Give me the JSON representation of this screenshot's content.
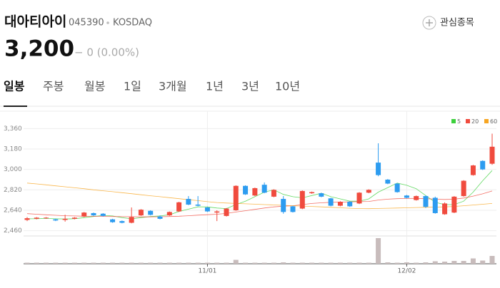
{
  "header": {
    "name": "대아티아이",
    "code": "045390",
    "market": "KOSDAQ",
    "watch_button": "관심종목",
    "price": "3,200",
    "change": "− 0 (0.00%)"
  },
  "tabs": [
    "일봉",
    "주봉",
    "월봉",
    "1일",
    "3개월",
    "1년",
    "3년",
    "10년"
  ],
  "chart_data": {
    "type": "candlestick",
    "categories": [
      null,
      null,
      null,
      null,
      null,
      null,
      null,
      null,
      null,
      null,
      null,
      null,
      null,
      null,
      null,
      null,
      null,
      null,
      null,
      "11/01",
      null,
      null,
      null,
      null,
      null,
      null,
      null,
      null,
      null,
      null,
      null,
      null,
      null,
      null,
      null,
      null,
      null,
      null,
      null,
      null,
      "12/02",
      null,
      null,
      null,
      null,
      null,
      null,
      null,
      null,
      null
    ],
    "open": [
      2555,
      2565,
      2570,
      2560,
      2555,
      2565,
      2585,
      2615,
      2610,
      2560,
      2545,
      2530,
      2595,
      2635,
      2585,
      2595,
      2630,
      2740,
      2690,
      2665,
      2620,
      2590,
      2640,
      2855,
      2770,
      2865,
      2760,
      2740,
      2675,
      2655,
      2790,
      2790,
      2745,
      2680,
      2715,
      2700,
      2795,
      3060,
      2910,
      2875,
      2770,
      2730,
      2765,
      2750,
      2605,
      2620,
      2765,
      2950,
      3075,
      3050
    ],
    "high": [
      2580,
      2580,
      2580,
      2565,
      2600,
      2580,
      2625,
      2620,
      2615,
      2565,
      2550,
      2665,
      2650,
      2640,
      2595,
      2630,
      2715,
      2765,
      2765,
      2670,
      2640,
      2660,
      2860,
      2860,
      2840,
      2885,
      2825,
      2765,
      2680,
      2815,
      2805,
      2795,
      2750,
      2720,
      2720,
      2800,
      2825,
      3230,
      2915,
      2880,
      2775,
      2770,
      2770,
      2760,
      2710,
      2765,
      2905,
      3040,
      3080,
      3315
    ],
    "low": [
      2545,
      2560,
      2565,
      2545,
      2540,
      2560,
      2580,
      2590,
      2585,
      2530,
      2525,
      2525,
      2590,
      2595,
      2560,
      2590,
      2625,
      2685,
      2675,
      2625,
      2545,
      2585,
      2635,
      2775,
      2765,
      2790,
      2755,
      2610,
      2620,
      2650,
      2785,
      2755,
      2675,
      2675,
      2670,
      2695,
      2790,
      2940,
      2870,
      2795,
      2745,
      2725,
      2660,
      2610,
      2600,
      2615,
      2760,
      2945,
      2995,
      3040
    ],
    "close": [
      2570,
      2575,
      2575,
      2550,
      2565,
      2575,
      2620,
      2595,
      2590,
      2535,
      2530,
      2580,
      2645,
      2600,
      2565,
      2625,
      2710,
      2690,
      2680,
      2630,
      2630,
      2655,
      2855,
      2780,
      2835,
      2795,
      2820,
      2625,
      2625,
      2810,
      2800,
      2760,
      2680,
      2715,
      2675,
      2795,
      2820,
      2950,
      2875,
      2800,
      2750,
      2765,
      2670,
      2615,
      2700,
      2760,
      2900,
      3035,
      3000,
      3200
    ],
    "up_color": "#f04b3e",
    "down_color": "#2d9cf0",
    "ylim": [
      2420,
      3450
    ],
    "yticks": [
      {
        "value": 2460,
        "label": "2,460"
      },
      {
        "value": 2640,
        "label": "2,640"
      },
      {
        "value": 2820,
        "label": "2,820"
      },
      {
        "value": 3000,
        "label": "3,000"
      },
      {
        "value": 3180,
        "label": "3,180"
      },
      {
        "value": 3360,
        "label": "3,360"
      }
    ],
    "legend": "top-right",
    "series": [
      {
        "name": "5",
        "color": "#3cd03c",
        "values": [
          2565,
          2566,
          2568,
          2565,
          2563,
          2566,
          2575,
          2585,
          2595,
          2590,
          2575,
          2565,
          2575,
          2585,
          2590,
          2600,
          2630,
          2650,
          2670,
          2670,
          2660,
          2655,
          2690,
          2720,
          2760,
          2800,
          2820,
          2780,
          2760,
          2750,
          2770,
          2790,
          2760,
          2740,
          2720,
          2720,
          2740,
          2800,
          2840,
          2880,
          2860,
          2830,
          2770,
          2710,
          2690,
          2690,
          2720,
          2800,
          2900,
          2990
        ]
      },
      {
        "name": "20",
        "color": "#f04b3e",
        "values": [
          2610,
          2605,
          2600,
          2596,
          2592,
          2590,
          2588,
          2587,
          2586,
          2585,
          2584,
          2583,
          2582,
          2582,
          2583,
          2585,
          2588,
          2592,
          2597,
          2601,
          2605,
          2612,
          2625,
          2636,
          2648,
          2660,
          2670,
          2676,
          2680,
          2690,
          2700,
          2706,
          2710,
          2712,
          2714,
          2716,
          2718,
          2730,
          2738,
          2742,
          2744,
          2745,
          2742,
          2738,
          2735,
          2738,
          2748,
          2765,
          2785,
          2810
        ]
      },
      {
        "name": "60",
        "color": "#f7a521",
        "values": [
          2880,
          2872,
          2864,
          2855,
          2847,
          2838,
          2830,
          2820,
          2812,
          2804,
          2795,
          2786,
          2777,
          2768,
          2760,
          2751,
          2742,
          2733,
          2725,
          2716,
          2708,
          2704,
          2700,
          2697,
          2694,
          2690,
          2687,
          2684,
          2680,
          2677,
          2674,
          2670,
          2666,
          2662,
          2658,
          2655,
          2654,
          2656,
          2658,
          2660,
          2662,
          2664,
          2666,
          2668,
          2670,
          2674,
          2680,
          2686,
          2693,
          2700
        ]
      }
    ],
    "volume": {
      "color": "#c8bcbc",
      "ylim": [
        0,
        380
      ],
      "values": [
        15,
        15,
        15,
        15,
        15,
        15,
        15,
        15,
        15,
        15,
        15,
        15,
        15,
        15,
        15,
        15,
        15,
        15,
        15,
        15,
        15,
        15,
        55,
        15,
        15,
        15,
        15,
        20,
        15,
        15,
        15,
        15,
        15,
        15,
        15,
        15,
        15,
        360,
        20,
        15,
        20,
        15,
        20,
        35,
        30,
        40,
        40,
        75,
        45,
        110
      ]
    }
  }
}
